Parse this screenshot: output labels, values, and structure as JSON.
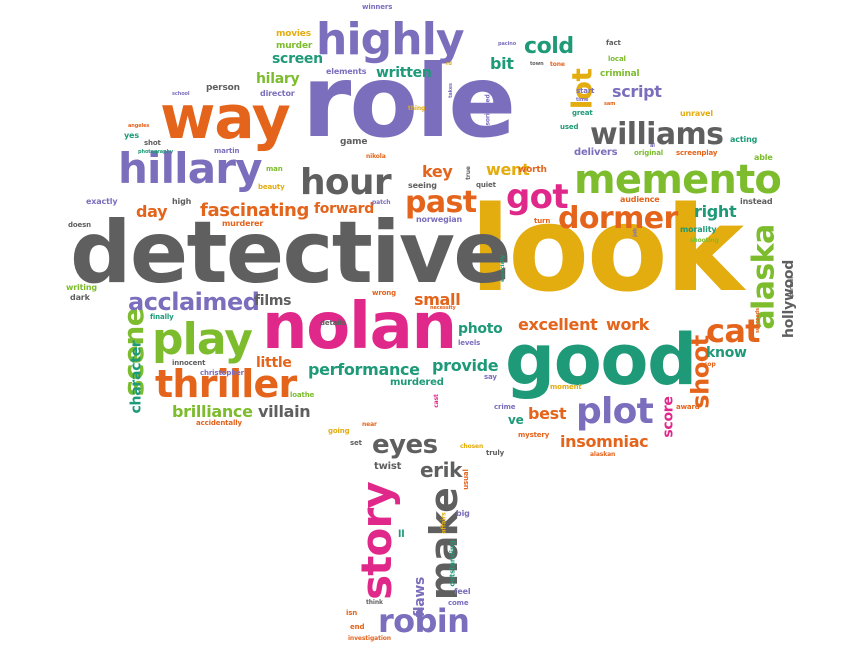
{
  "colors": {
    "purple": "#7b6fbd",
    "orange": "#e4641c",
    "gray": "#5f5f5f",
    "yellow": "#e3ac0f",
    "green": "#1e9a78",
    "pink": "#e0278a",
    "lime": "#7cbc2d"
  },
  "words": [
    {
      "text": "role",
      "color": "purple",
      "weight": 1.0
    },
    {
      "text": "look",
      "color": "yellow",
      "weight": 1.0
    },
    {
      "text": "detective",
      "color": "gray",
      "weight": 0.95
    },
    {
      "text": "nolan",
      "color": "pink",
      "weight": 0.7
    },
    {
      "text": "good",
      "color": "green",
      "weight": 0.7
    },
    {
      "text": "way",
      "color": "orange",
      "weight": 0.6
    },
    {
      "text": "highly",
      "color": "purple",
      "weight": 0.45
    },
    {
      "text": "hillary",
      "color": "purple",
      "weight": 0.42
    },
    {
      "text": "memento",
      "color": "lime",
      "weight": 0.42
    },
    {
      "text": "play",
      "color": "lime",
      "weight": 0.42
    },
    {
      "text": "thriller",
      "color": "orange",
      "weight": 0.38
    },
    {
      "text": "story",
      "color": "pink",
      "weight": 0.4
    },
    {
      "text": "hour",
      "color": "gray",
      "weight": 0.36
    },
    {
      "text": "williams",
      "color": "gray",
      "weight": 0.32
    },
    {
      "text": "plot",
      "color": "purple",
      "weight": 0.36
    },
    {
      "text": "make",
      "color": "gray",
      "weight": 0.36
    },
    {
      "text": "robin",
      "color": "purple",
      "weight": 0.32
    },
    {
      "text": "got",
      "color": "pink",
      "weight": 0.32
    },
    {
      "text": "dormer",
      "color": "orange",
      "weight": 0.3
    },
    {
      "text": "past",
      "color": "orange",
      "weight": 0.3
    },
    {
      "text": "alaska",
      "color": "lime",
      "weight": 0.3
    },
    {
      "text": "cat",
      "color": "orange",
      "weight": 0.3
    },
    {
      "text": "scene",
      "color": "lime",
      "weight": 0.3
    },
    {
      "text": "acclaimed",
      "color": "purple",
      "weight": 0.26
    },
    {
      "text": "eyes",
      "color": "gray",
      "weight": 0.26
    },
    {
      "text": "shoot",
      "color": "orange",
      "weight": 0.24
    },
    {
      "text": "lot",
      "color": "yellow",
      "weight": 0.26
    },
    {
      "text": "cold",
      "color": "green",
      "weight": 0.2
    },
    {
      "text": "erik",
      "color": "gray",
      "weight": 0.2
    },
    {
      "text": "fascinating",
      "color": "orange",
      "weight": 0.2
    },
    {
      "text": "excellent",
      "color": "orange",
      "weight": 0.18
    },
    {
      "text": "performance",
      "color": "green",
      "weight": 0.18
    },
    {
      "text": "provide",
      "color": "green",
      "weight": 0.18
    },
    {
      "text": "brilliance",
      "color": "lime",
      "weight": 0.18
    },
    {
      "text": "insomniac",
      "color": "orange",
      "weight": 0.18
    },
    {
      "text": "character",
      "color": "green",
      "weight": 0.16
    },
    {
      "text": "villain",
      "color": "gray",
      "weight": 0.17
    },
    {
      "text": "screen",
      "color": "green",
      "weight": 0.16
    },
    {
      "text": "written",
      "color": "green",
      "weight": 0.16
    },
    {
      "text": "hilary",
      "color": "lime",
      "weight": 0.16
    },
    {
      "text": "bit",
      "color": "green",
      "weight": 0.18
    },
    {
      "text": "script",
      "color": "purple",
      "weight": 0.17
    },
    {
      "text": "key",
      "color": "orange",
      "weight": 0.17
    },
    {
      "text": "went",
      "color": "yellow",
      "weight": 0.17
    },
    {
      "text": "forward",
      "color": "orange",
      "weight": 0.16
    },
    {
      "text": "films",
      "color": "gray",
      "weight": 0.16
    },
    {
      "text": "right",
      "color": "green",
      "weight": 0.17
    },
    {
      "text": "small",
      "color": "orange",
      "weight": 0.17
    },
    {
      "text": "work",
      "color": "orange",
      "weight": 0.17
    },
    {
      "text": "know",
      "color": "green",
      "weight": 0.16
    },
    {
      "text": "little",
      "color": "orange",
      "weight": 0.15
    },
    {
      "text": "best",
      "color": "orange",
      "weight": 0.17
    },
    {
      "text": "photo",
      "color": "green",
      "weight": 0.15
    },
    {
      "text": "day",
      "color": "orange",
      "weight": 0.16
    },
    {
      "text": "hollywood",
      "color": "gray",
      "weight": 0.15
    },
    {
      "text": "score",
      "color": "pink",
      "weight": 0.14
    },
    {
      "text": "flaws",
      "color": "purple",
      "weight": 0.14
    },
    {
      "text": "delivers",
      "color": "purple",
      "weight": 0.1
    },
    {
      "text": "worth",
      "color": "orange",
      "weight": 0.09
    },
    {
      "text": "murdered",
      "color": "green",
      "weight": 0.1
    },
    {
      "text": "twist",
      "color": "gray",
      "weight": 0.1
    },
    {
      "text": "movies",
      "color": "yellow",
      "weight": 0.09
    },
    {
      "text": "murder",
      "color": "lime",
      "weight": 0.09
    },
    {
      "text": "elements",
      "color": "purple",
      "weight": 0.08
    },
    {
      "text": "director",
      "color": "purple",
      "weight": 0.08
    },
    {
      "text": "person",
      "color": "gray",
      "weight": 0.09
    },
    {
      "text": "criminal",
      "color": "lime",
      "weight": 0.09
    },
    {
      "text": "acting",
      "color": "green",
      "weight": 0.08
    },
    {
      "text": "able",
      "color": "lime",
      "weight": 0.08
    },
    {
      "text": "unravel",
      "color": "yellow",
      "weight": 0.08
    },
    {
      "text": "audience",
      "color": "orange",
      "weight": 0.08
    },
    {
      "text": "instead",
      "color": "gray",
      "weight": 0.08
    },
    {
      "text": "morality",
      "color": "green",
      "weight": 0.08
    },
    {
      "text": "shooting",
      "color": "lime",
      "weight": 0.06
    },
    {
      "text": "writing",
      "color": "lime",
      "weight": 0.08
    },
    {
      "text": "dark",
      "color": "gray",
      "weight": 0.08
    },
    {
      "text": "exactly",
      "color": "purple",
      "weight": 0.08
    },
    {
      "text": "doesn",
      "color": "gray",
      "weight": 0.07
    },
    {
      "text": "finally",
      "color": "green",
      "weight": 0.07
    },
    {
      "text": "innocent",
      "color": "gray",
      "weight": 0.07
    },
    {
      "text": "accidentally",
      "color": "orange",
      "weight": 0.07
    },
    {
      "text": "winners",
      "color": "purple",
      "weight": 0.07
    },
    {
      "text": "high",
      "color": "gray",
      "weight": 0.08
    },
    {
      "text": "seeing",
      "color": "gray",
      "weight": 0.08
    },
    {
      "text": "murderer",
      "color": "orange",
      "weight": 0.08
    },
    {
      "text": "norwegian",
      "color": "purple",
      "weight": 0.08
    },
    {
      "text": "game",
      "color": "gray",
      "weight": 0.09
    },
    {
      "text": "martin",
      "color": "purple",
      "weight": 0.07
    },
    {
      "text": "beauty",
      "color": "yellow",
      "weight": 0.07
    },
    {
      "text": "details",
      "color": "gray",
      "weight": 0.07
    },
    {
      "text": "wrong",
      "color": "orange",
      "weight": 0.07
    },
    {
      "text": "christopher",
      "color": "purple",
      "weight": 0.07
    },
    {
      "text": "loathe",
      "color": "lime",
      "weight": 0.07
    },
    {
      "text": "going",
      "color": "yellow",
      "weight": 0.07
    },
    {
      "text": "near",
      "color": "orange",
      "weight": 0.06
    },
    {
      "text": "set",
      "color": "gray",
      "weight": 0.07
    },
    {
      "text": "mystery",
      "color": "orange",
      "weight": 0.07
    },
    {
      "text": "alaskan",
      "color": "orange",
      "weight": 0.06
    },
    {
      "text": "award",
      "color": "orange",
      "weight": 0.07
    },
    {
      "text": "moment",
      "color": "yellow",
      "weight": 0.07
    },
    {
      "text": "say",
      "color": "purple",
      "weight": 0.07
    },
    {
      "text": "crime",
      "color": "purple",
      "weight": 0.07
    },
    {
      "text": "levels",
      "color": "purple",
      "weight": 0.07
    },
    {
      "text": "chosen",
      "color": "yellow",
      "weight": 0.06
    },
    {
      "text": "truly",
      "color": "gray",
      "weight": 0.07
    },
    {
      "text": "usual",
      "color": "orange",
      "weight": 0.07
    },
    {
      "text": "big",
      "color": "purple",
      "weight": 0.08
    },
    {
      "text": "feel",
      "color": "purple",
      "weight": 0.08
    },
    {
      "text": "come",
      "color": "purple",
      "weight": 0.07
    },
    {
      "text": "isn",
      "color": "orange",
      "weight": 0.07
    },
    {
      "text": "end",
      "color": "orange",
      "weight": 0.07
    },
    {
      "text": "think",
      "color": "gray",
      "weight": 0.06
    },
    {
      "text": "investigation",
      "color": "orange",
      "weight": 0.06
    },
    {
      "text": "outstanding",
      "color": "green",
      "weight": 0.07
    },
    {
      "text": "affairs",
      "color": "yellow",
      "weight": 0.06
    },
    {
      "text": "ll",
      "color": "green",
      "weight": 0.1
    },
    {
      "text": "ve",
      "color": "green",
      "weight": 0.12
    },
    {
      "text": "yes",
      "color": "green",
      "weight": 0.07
    },
    {
      "text": "shot",
      "color": "gray",
      "weight": 0.07
    },
    {
      "text": "school",
      "color": "purple",
      "weight": 0.05
    },
    {
      "text": "angeles",
      "color": "orange",
      "weight": 0.05
    },
    {
      "text": "photography",
      "color": "green",
      "weight": 0.05
    },
    {
      "text": "man",
      "color": "lime",
      "weight": 0.07
    },
    {
      "text": "thing",
      "color": "yellow",
      "weight": 0.06
    },
    {
      "text": "takes",
      "color": "purple",
      "weight": 0.05
    },
    {
      "text": "nikola",
      "color": "orange",
      "weight": 0.06
    },
    {
      "text": "quiet",
      "color": "gray",
      "weight": 0.07
    },
    {
      "text": "true",
      "color": "gray",
      "weight": 0.06
    },
    {
      "text": "patch",
      "color": "purple",
      "weight": 0.06
    },
    {
      "text": "don",
      "color": "gray",
      "weight": 0.06
    },
    {
      "text": "necessity",
      "color": "orange",
      "weight": 0.05
    },
    {
      "text": "especially",
      "color": "green",
      "weight": 0.05
    },
    {
      "text": "turn",
      "color": "orange",
      "weight": 0.07
    },
    {
      "text": "disoriented",
      "color": "purple",
      "weight": 0.06
    },
    {
      "text": "town",
      "color": "gray",
      "weight": 0.05
    },
    {
      "text": "tone",
      "color": "orange",
      "weight": 0.06
    },
    {
      "text": "fact",
      "color": "gray",
      "weight": 0.07
    },
    {
      "text": "local",
      "color": "lime",
      "weight": 0.07
    },
    {
      "text": "pacino",
      "color": "purple",
      "weight": 0.05
    },
    {
      "text": "great",
      "color": "green",
      "weight": 0.07
    },
    {
      "text": "used",
      "color": "green",
      "weight": 0.07
    },
    {
      "text": "start",
      "color": "purple",
      "weight": 0.07
    },
    {
      "text": "time",
      "color": "purple",
      "weight": 0.05
    },
    {
      "text": "sam",
      "color": "orange",
      "weight": 0.05
    },
    {
      "text": "al",
      "color": "purple",
      "weight": 0.05
    },
    {
      "text": "original",
      "color": "lime",
      "weight": 0.07
    },
    {
      "text": "screenplay",
      "color": "orange",
      "weight": 0.07
    },
    {
      "text": "rd",
      "color": "yellow",
      "weight": 0.05
    },
    {
      "text": "job",
      "color": "purple",
      "weight": 0.05
    },
    {
      "text": "cast",
      "color": "pink",
      "weight": 0.06
    },
    {
      "text": "cop",
      "color": "orange",
      "weight": 0.06
    },
    {
      "text": "succeeds",
      "color": "orange",
      "weight": 0.05
    },
    {
      "text": "partner",
      "color": "gray",
      "weight": 0.05
    }
  ]
}
